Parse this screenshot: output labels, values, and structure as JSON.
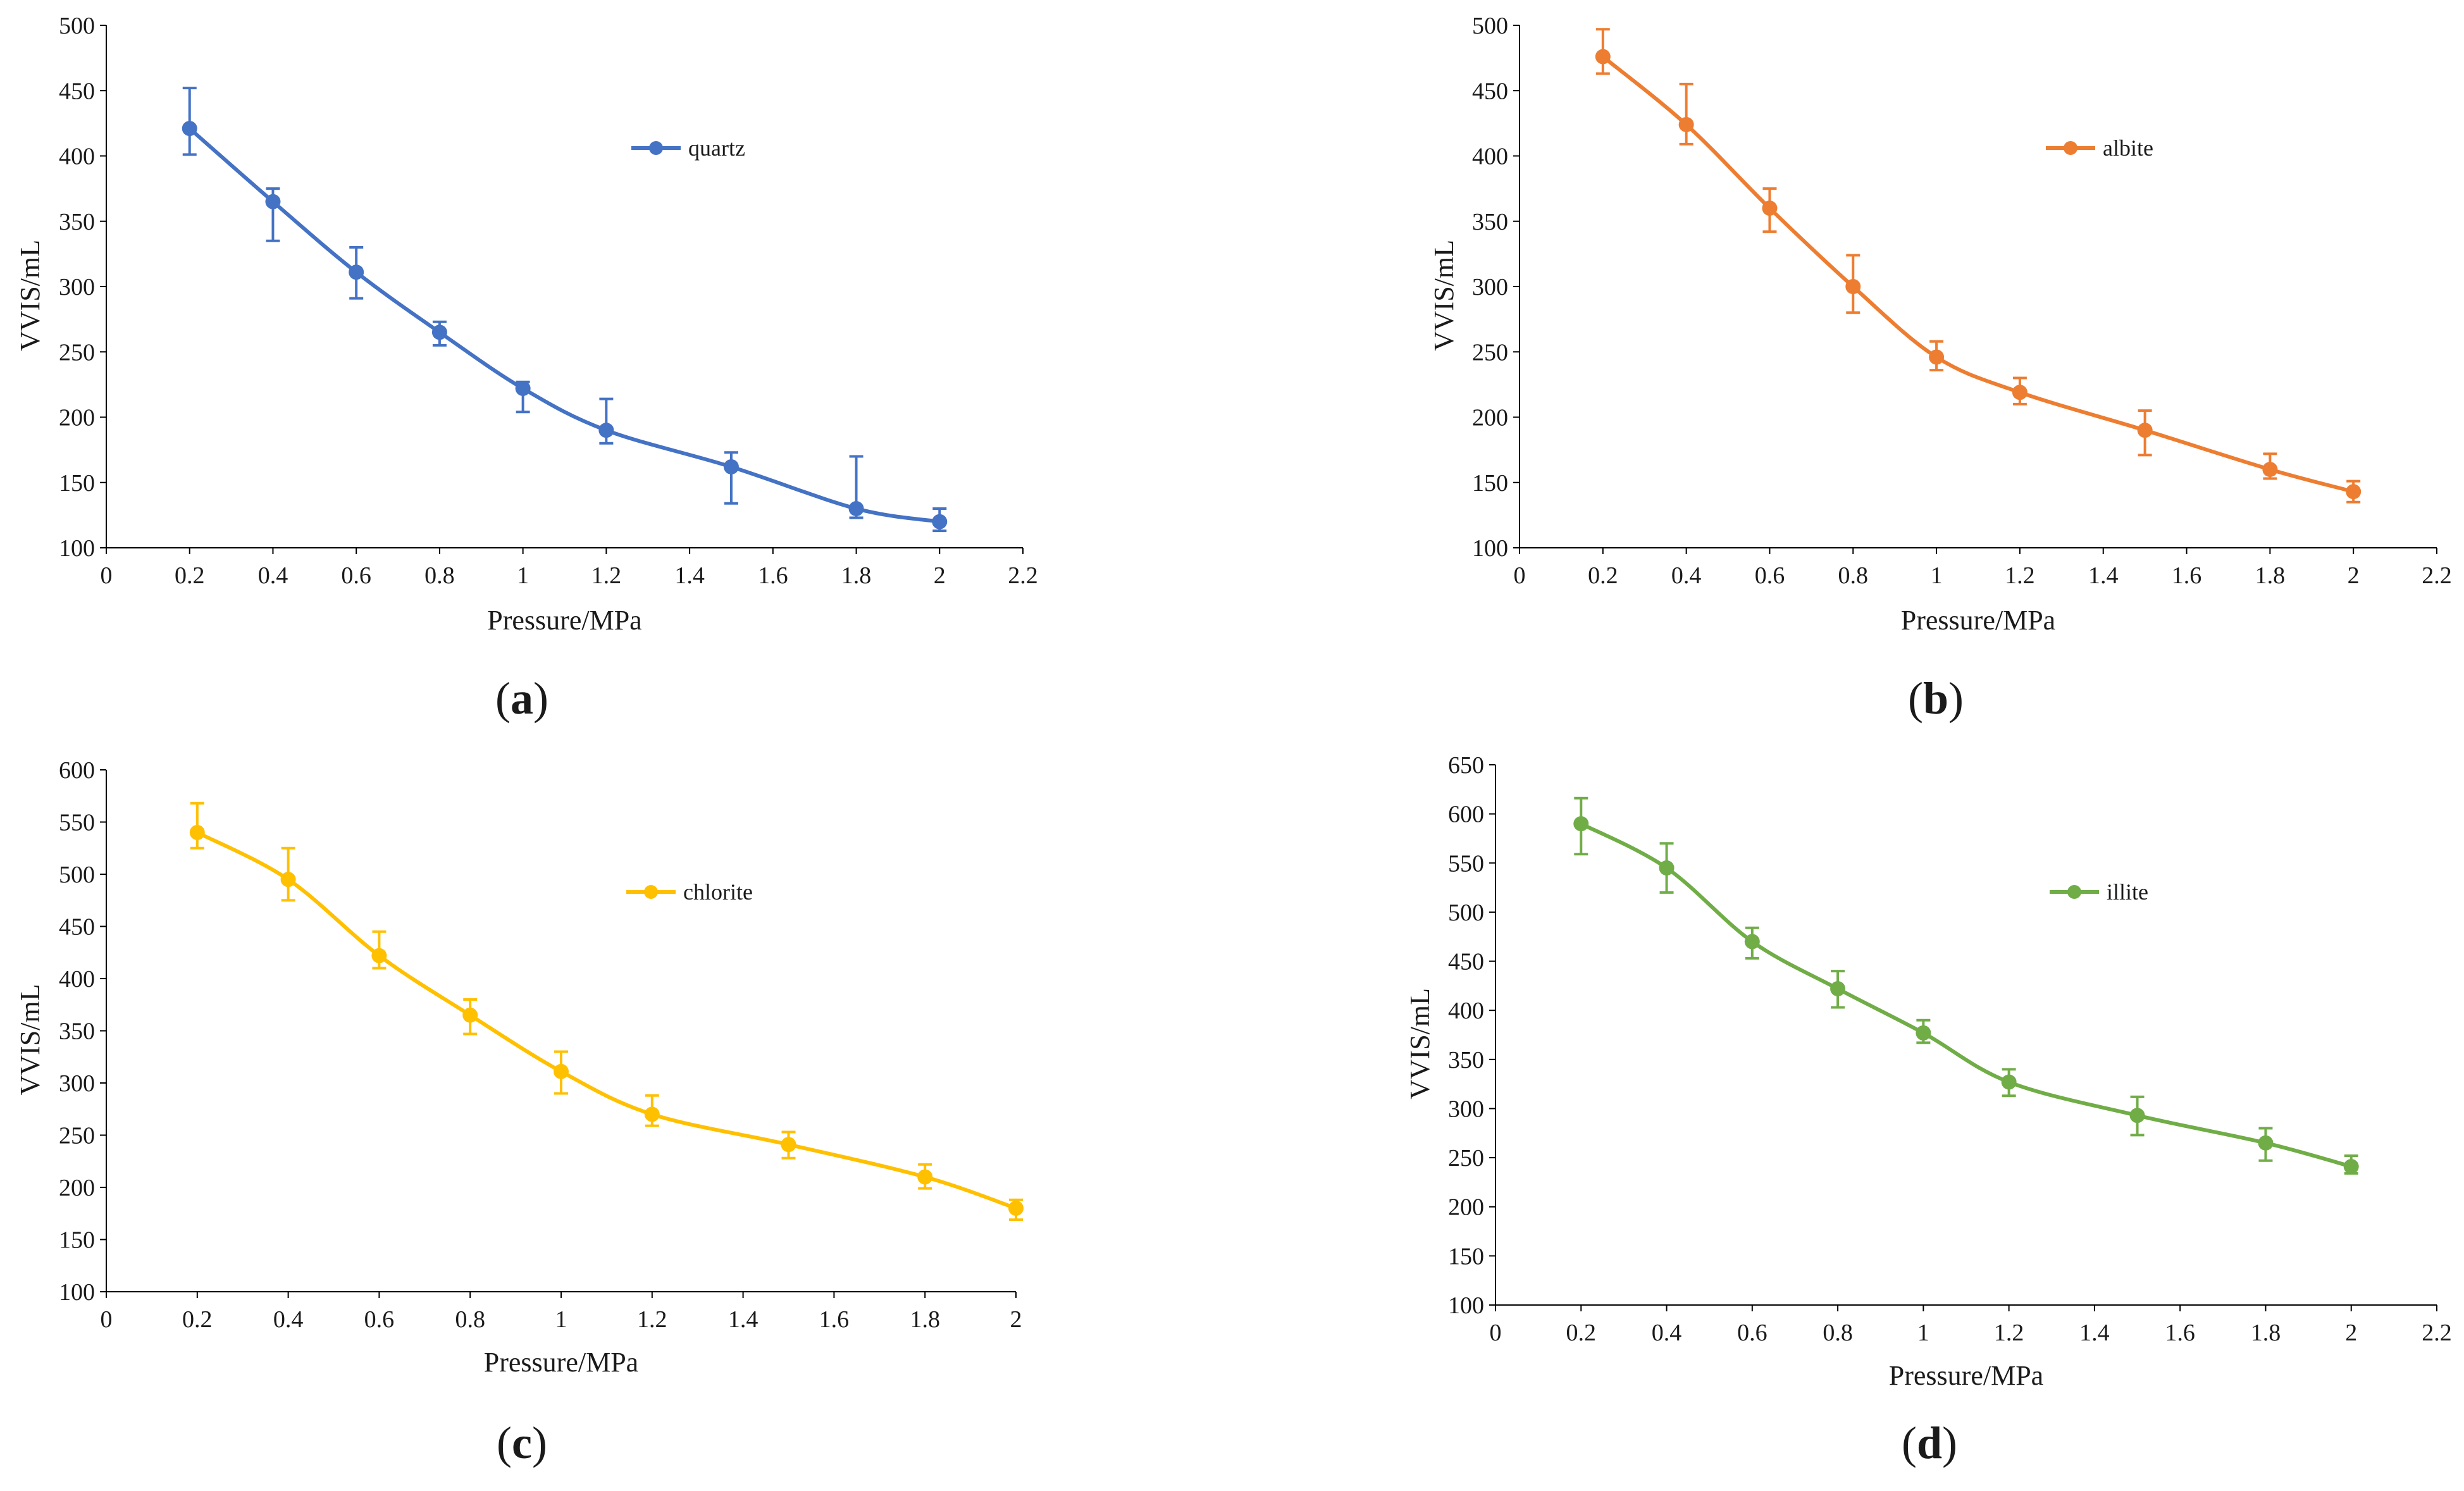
{
  "figure": {
    "panels": [
      {
        "id": "a",
        "label": "a",
        "color": "#4472C4"
      },
      {
        "id": "b",
        "label": "b",
        "color": "#ED7D31"
      },
      {
        "id": "c",
        "label": "c",
        "color": "#FFC000"
      },
      {
        "id": "d",
        "label": "d",
        "color": "#70AD47"
      }
    ]
  },
  "chart_data": [
    {
      "panel": "a",
      "type": "line",
      "title": "",
      "xlabel": "Pressure/MPa",
      "ylabel": "VVIS/mL",
      "xlim": [
        0,
        2.2
      ],
      "ylim": [
        100,
        500
      ],
      "xticks": [
        0,
        0.2,
        0.4,
        0.6,
        0.8,
        1,
        1.2,
        1.4,
        1.6,
        1.8,
        2,
        2.2
      ],
      "yticks": [
        100,
        150,
        200,
        250,
        300,
        350,
        400,
        450,
        500
      ],
      "legend_position": "top-right",
      "series": [
        {
          "name": "quartz",
          "color": "#4472C4",
          "x": [
            0.2,
            0.4,
            0.6,
            0.8,
            1,
            1.2,
            1.5,
            1.8,
            2
          ],
          "y": [
            421,
            365,
            311,
            265,
            222,
            190,
            162,
            130,
            120
          ],
          "err_high": [
            452,
            375,
            330,
            273,
            227,
            214,
            173,
            170,
            130
          ],
          "err_low": [
            401,
            335,
            291,
            255,
            204,
            180,
            134,
            123,
            113
          ]
        }
      ]
    },
    {
      "panel": "b",
      "type": "line",
      "title": "",
      "xlabel": "Pressure/MPa",
      "ylabel": "VVIS/mL",
      "xlim": [
        0,
        2.2
      ],
      "ylim": [
        100,
        500
      ],
      "xticks": [
        0,
        0.2,
        0.4,
        0.6,
        0.8,
        1,
        1.2,
        1.4,
        1.6,
        1.8,
        2,
        2.2
      ],
      "yticks": [
        100,
        150,
        200,
        250,
        300,
        350,
        400,
        450,
        500
      ],
      "legend_position": "top-right",
      "series": [
        {
          "name": "albite",
          "color": "#ED7D31",
          "x": [
            0.2,
            0.4,
            0.6,
            0.8,
            1,
            1.2,
            1.5,
            1.8,
            2
          ],
          "y": [
            476,
            424,
            360,
            300,
            246,
            219,
            190,
            160,
            143
          ],
          "err_high": [
            497,
            455,
            375,
            324,
            258,
            230,
            205,
            172,
            151
          ],
          "err_low": [
            463,
            409,
            342,
            280,
            236,
            210,
            171,
            153,
            135
          ]
        }
      ]
    },
    {
      "panel": "c",
      "type": "line",
      "title": "",
      "xlabel": "Pressure/MPa",
      "ylabel": "VVIS/mL",
      "xlim": [
        0,
        2
      ],
      "ylim": [
        100,
        600
      ],
      "xticks": [
        0,
        0.2,
        0.4,
        0.6,
        0.8,
        1,
        1.2,
        1.4,
        1.6,
        1.8,
        2
      ],
      "yticks": [
        100,
        150,
        200,
        250,
        300,
        350,
        400,
        450,
        500,
        550,
        600
      ],
      "legend_position": "top-right",
      "series": [
        {
          "name": "chlorite",
          "color": "#FFC000",
          "x": [
            0.2,
            0.4,
            0.6,
            0.8,
            1,
            1.2,
            1.5,
            1.8,
            2
          ],
          "y": [
            540,
            495,
            422,
            365,
            311,
            270,
            241,
            210,
            180
          ],
          "err_high": [
            568,
            525,
            445,
            380,
            330,
            288,
            253,
            222,
            188
          ],
          "err_low": [
            525,
            475,
            410,
            347,
            290,
            259,
            228,
            199,
            169
          ]
        }
      ]
    },
    {
      "panel": "d",
      "type": "line",
      "title": "",
      "xlabel": "Pressure/MPa",
      "ylabel": "VVIS/mL",
      "xlim": [
        0,
        2.2
      ],
      "ylim": [
        100,
        650
      ],
      "xticks": [
        0,
        0.2,
        0.4,
        0.6,
        0.8,
        1,
        1.2,
        1.4,
        1.6,
        1.8,
        2,
        2.2
      ],
      "yticks": [
        100,
        150,
        200,
        250,
        300,
        350,
        400,
        450,
        500,
        550,
        600,
        650
      ],
      "legend_position": "top-right",
      "series": [
        {
          "name": "illite",
          "color": "#70AD47",
          "x": [
            0.2,
            0.4,
            0.6,
            0.8,
            1,
            1.2,
            1.5,
            1.8,
            2
          ],
          "y": [
            590,
            545,
            470,
            422,
            377,
            327,
            293,
            265,
            241
          ],
          "err_high": [
            616,
            570,
            484,
            440,
            390,
            340,
            312,
            280,
            252
          ],
          "err_low": [
            559,
            520,
            453,
            403,
            367,
            313,
            273,
            247,
            234
          ]
        }
      ]
    }
  ]
}
